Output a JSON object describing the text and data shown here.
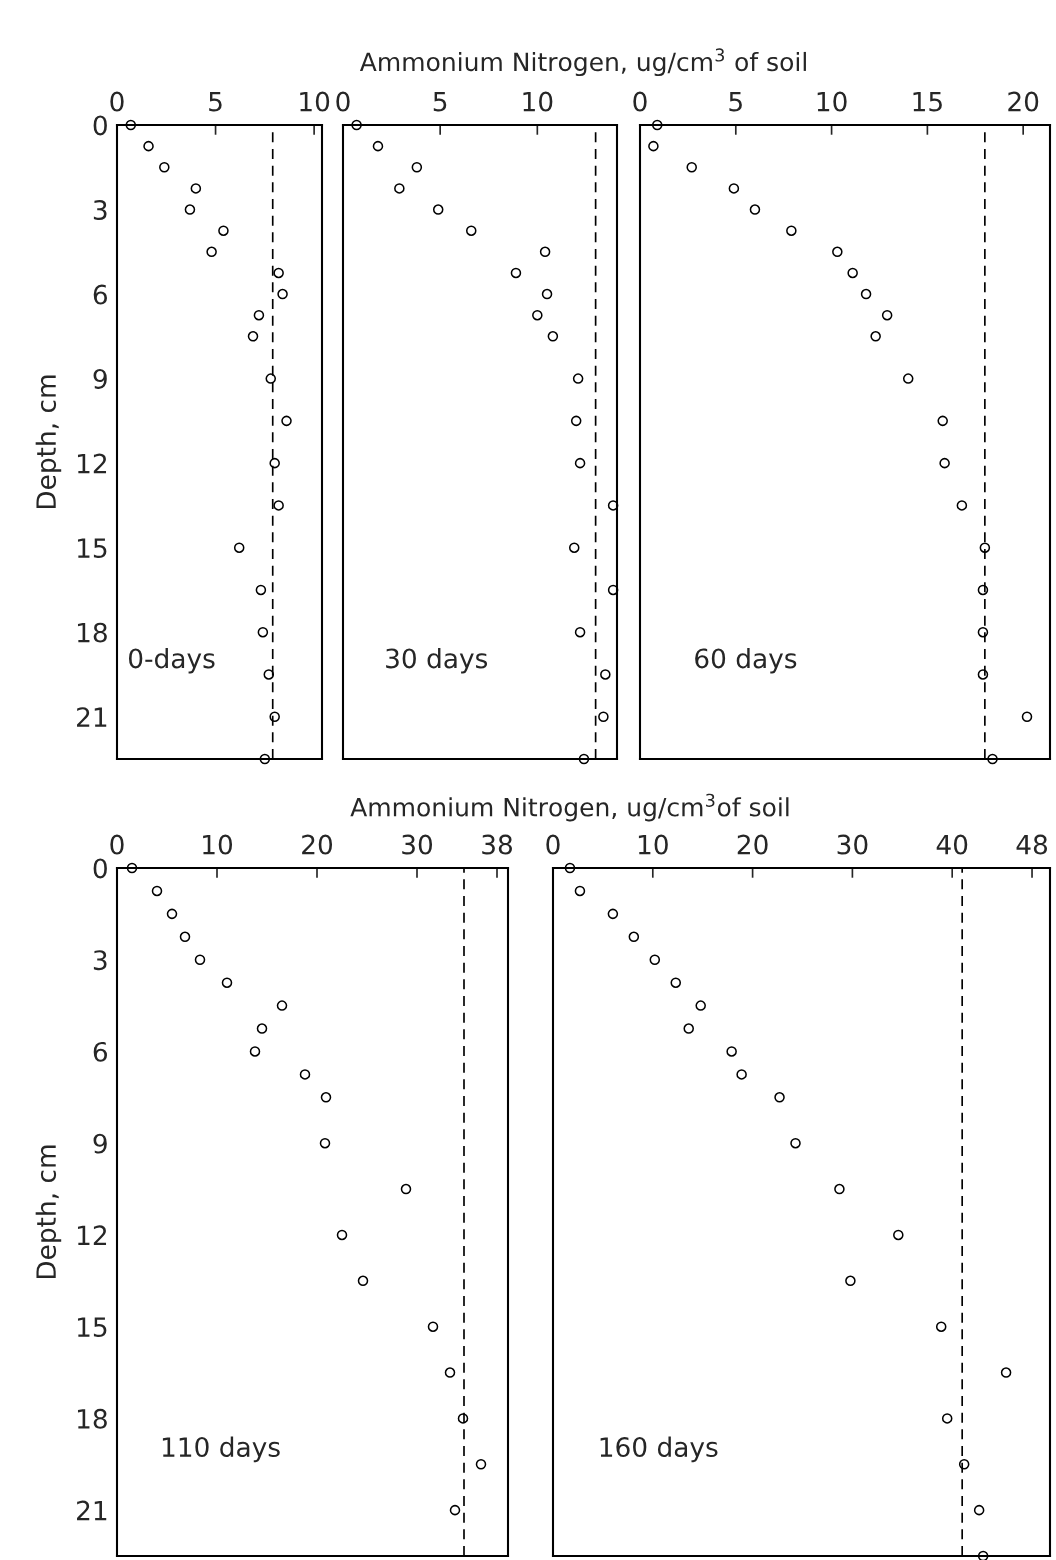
{
  "chart_data": [
    {
      "type": "scatter",
      "xlabel": null,
      "ylabel": "Depth, cm",
      "annotations": [
        "0-days"
      ],
      "marker": "circle",
      "grid": false,
      "xlim": [
        0,
        10.4
      ],
      "xticks": [
        0,
        5,
        10
      ],
      "ylim": [
        22.5,
        0
      ],
      "yticks": [
        0,
        3,
        6,
        9,
        12,
        15,
        18,
        21
      ],
      "series": [
        {
          "color": "#000000",
          "x": [
            0.7,
            1.6,
            2.4,
            4.0,
            3.7,
            5.4,
            4.8,
            8.2,
            8.4,
            7.2,
            6.9,
            7.8,
            8.6,
            8.0,
            8.2,
            6.2,
            7.3,
            7.4,
            7.7,
            8.0,
            7.5
          ],
          "values": [
            0,
            0.75,
            1.5,
            2.25,
            3,
            3.75,
            4.5,
            5.25,
            6,
            6.75,
            7.5,
            9,
            10.5,
            12,
            13.5,
            15,
            16.5,
            18,
            19.5,
            21,
            22.5
          ]
        }
      ],
      "ref_lines": [
        {
          "axis": "x",
          "value": 7.9,
          "color": "#000000",
          "line_style": "dashed"
        }
      ]
    },
    {
      "type": "scatter",
      "xlabel": "Ammonium Nitrogen, ug/cm$^{3}$ of soil",
      "annotations": [
        "30 days"
      ],
      "marker": "circle",
      "grid": false,
      "tick_labels": "x",
      "xlim": [
        0,
        14.1
      ],
      "xticks": [
        0,
        5,
        10
      ],
      "ylim": [
        22.5,
        0
      ],
      "yticks": [
        0,
        3,
        6,
        9,
        12,
        15,
        18,
        21
      ],
      "series": [
        {
          "color": "#000000",
          "x": [
            0.7,
            1.8,
            3.8,
            2.9,
            4.9,
            6.6,
            10.4,
            8.9,
            10.5,
            10.0,
            10.8,
            12.1,
            12.0,
            12.2,
            13.9,
            11.9,
            13.9,
            12.2,
            13.5,
            13.4,
            12.4
          ],
          "values": [
            0,
            0.75,
            1.5,
            2.25,
            3,
            3.75,
            4.5,
            5.25,
            6,
            6.75,
            7.5,
            9,
            10.5,
            12,
            13.5,
            15,
            16.5,
            18,
            19.5,
            21,
            22.5
          ]
        }
      ],
      "ref_lines": [
        {
          "axis": "x",
          "value": 13.0,
          "color": "#000000",
          "line_style": "dashed"
        }
      ]
    },
    {
      "type": "scatter",
      "annotations": [
        "60 days"
      ],
      "marker": "circle",
      "grid": false,
      "tick_labels": "x",
      "xlim": [
        0,
        21.4
      ],
      "xticks": [
        0,
        5,
        10,
        15,
        20
      ],
      "ylim": [
        22.5,
        0
      ],
      "yticks": [
        0,
        3,
        6,
        9,
        12,
        15,
        18,
        21
      ],
      "series": [
        {
          "color": "#000000",
          "x": [
            0.9,
            0.7,
            2.7,
            4.9,
            6.0,
            7.9,
            10.3,
            11.1,
            11.8,
            12.9,
            12.3,
            14.0,
            15.8,
            15.9,
            16.8,
            18.0,
            17.9,
            17.9,
            17.9,
            20.2,
            18.4
          ],
          "values": [
            0,
            0.75,
            1.5,
            2.25,
            3,
            3.75,
            4.5,
            5.25,
            6,
            6.75,
            7.5,
            9,
            10.5,
            12,
            13.5,
            15,
            16.5,
            18,
            19.5,
            21,
            22.5
          ]
        }
      ],
      "ref_lines": [
        {
          "axis": "x",
          "value": 18.0,
          "color": "#000000",
          "line_style": "dashed"
        }
      ]
    },
    {
      "type": "scatter",
      "xlabel": "Ammonium Nitrogen, ug/cm$^{3}$of soil",
      "ylabel": "Depth, cm",
      "annotations": [
        "110 days"
      ],
      "marker": "circle",
      "grid": false,
      "xlim": [
        0,
        39.1
      ],
      "xticks": [
        0,
        10,
        20,
        30,
        38
      ],
      "ylim": [
        22.5,
        0
      ],
      "yticks": [
        0,
        3,
        6,
        9,
        12,
        15,
        18,
        21
      ],
      "series": [
        {
          "color": "#000000",
          "x": [
            1.5,
            4.0,
            5.5,
            6.8,
            8.3,
            11.0,
            16.5,
            14.5,
            13.8,
            18.8,
            20.9,
            20.8,
            28.9,
            22.5,
            24.6,
            31.6,
            33.3,
            34.6,
            36.4,
            33.8
          ],
          "values": [
            0,
            0.75,
            1.5,
            2.25,
            3,
            3.75,
            4.5,
            5.25,
            6,
            6.75,
            7.5,
            9,
            10.5,
            12,
            13.5,
            15,
            16.5,
            18,
            19.5,
            21
          ]
        }
      ],
      "ref_lines": [
        {
          "axis": "x",
          "value": 34.7,
          "color": "#000000",
          "line_style": "dashed"
        }
      ]
    },
    {
      "type": "scatter",
      "annotations": [
        "160 days"
      ],
      "marker": "circle",
      "grid": false,
      "tick_labels": "x",
      "xlim": [
        0,
        49.8
      ],
      "xticks": [
        0,
        10,
        20,
        30,
        40,
        48
      ],
      "ylim": [
        22.5,
        0
      ],
      "yticks": [
        0,
        3,
        6,
        9,
        12,
        15,
        18,
        21
      ],
      "series": [
        {
          "color": "#000000",
          "x": [
            1.7,
            2.7,
            6.0,
            8.1,
            10.2,
            12.3,
            14.8,
            13.6,
            17.9,
            18.9,
            22.7,
            24.3,
            28.7,
            34.6,
            29.8,
            38.9,
            45.4,
            39.5,
            41.2,
            42.7,
            43.1
          ],
          "values": [
            0,
            0.75,
            1.5,
            2.25,
            3,
            3.75,
            4.5,
            5.25,
            6,
            6.75,
            7.5,
            9,
            10.5,
            12,
            13.5,
            15,
            16.5,
            18,
            19.5,
            21,
            22.5
          ]
        }
      ],
      "ref_lines": [
        {
          "axis": "x",
          "value": 41.0,
          "color": "#000000",
          "line_style": "dashed"
        }
      ]
    }
  ]
}
